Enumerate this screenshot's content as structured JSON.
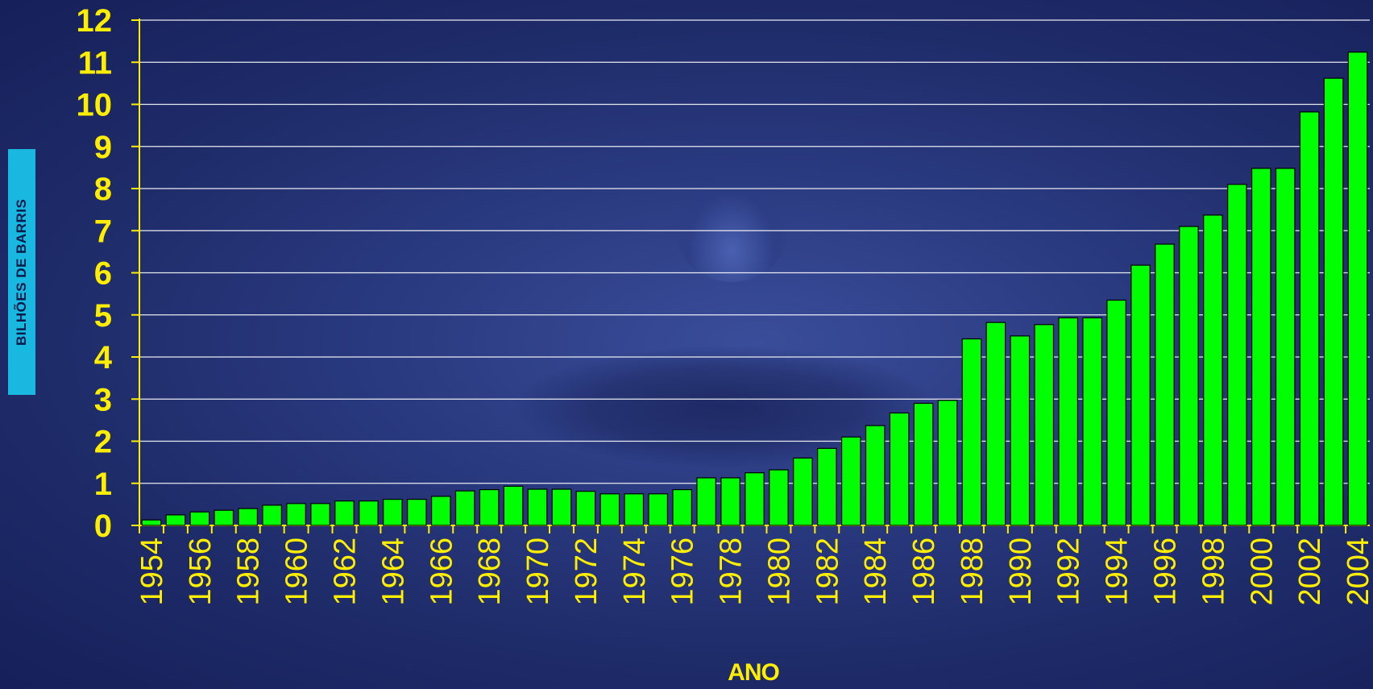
{
  "chart_data": {
    "type": "bar",
    "title": "",
    "xlabel": "ANO",
    "ylabel": "BILHÕES DE BARRIS",
    "ylim": [
      0,
      12
    ],
    "yticks": [
      0,
      1,
      2,
      3,
      4,
      5,
      6,
      7,
      8,
      9,
      10,
      11,
      12
    ],
    "grid": true,
    "categories": [
      "1954",
      "1955",
      "1956",
      "1957",
      "1958",
      "1959",
      "1960",
      "1961",
      "1962",
      "1963",
      "1964",
      "1965",
      "1966",
      "1967",
      "1968",
      "1969",
      "1970",
      "1971",
      "1972",
      "1973",
      "1974",
      "1975",
      "1976",
      "1977",
      "1978",
      "1979",
      "1980",
      "1981",
      "1982",
      "1983",
      "1984",
      "1985",
      "1986",
      "1987",
      "1988",
      "1989",
      "1990",
      "1991",
      "1992",
      "1993",
      "1994",
      "1995",
      "1996",
      "1997",
      "1998",
      "1999",
      "2000",
      "2001",
      "2002",
      "2003",
      "2004"
    ],
    "tick_labels": [
      "1954",
      "1956",
      "1958",
      "1960",
      "1962",
      "1964",
      "1966",
      "1968",
      "1970",
      "1972",
      "1974",
      "1976",
      "1978",
      "1980",
      "1982",
      "1984",
      "1986",
      "1988",
      "1990",
      "1992",
      "1994",
      "1996",
      "1998",
      "2000",
      "2002",
      "2004"
    ],
    "values": [
      0.13,
      0.25,
      0.32,
      0.36,
      0.4,
      0.48,
      0.52,
      0.52,
      0.58,
      0.58,
      0.62,
      0.62,
      0.69,
      0.82,
      0.85,
      0.93,
      0.86,
      0.86,
      0.81,
      0.75,
      0.75,
      0.75,
      0.85,
      1.13,
      1.13,
      1.25,
      1.32,
      1.6,
      1.83,
      2.1,
      2.37,
      2.67,
      2.9,
      2.97,
      4.43,
      4.82,
      4.5,
      4.77,
      4.93,
      4.93,
      5.35,
      6.18,
      6.68,
      7.1,
      7.37,
      8.1,
      8.48,
      8.48,
      9.82,
      10.62,
      11.24
    ],
    "colors": {
      "bar": "#00ff00",
      "bar_stroke": "#000000",
      "tick_text": "#ffee00",
      "grid": "#ffffff",
      "axis": "#ffee00",
      "ylabel_bg": "#18b8e0",
      "ylabel_text": "#0a1a4a"
    }
  }
}
